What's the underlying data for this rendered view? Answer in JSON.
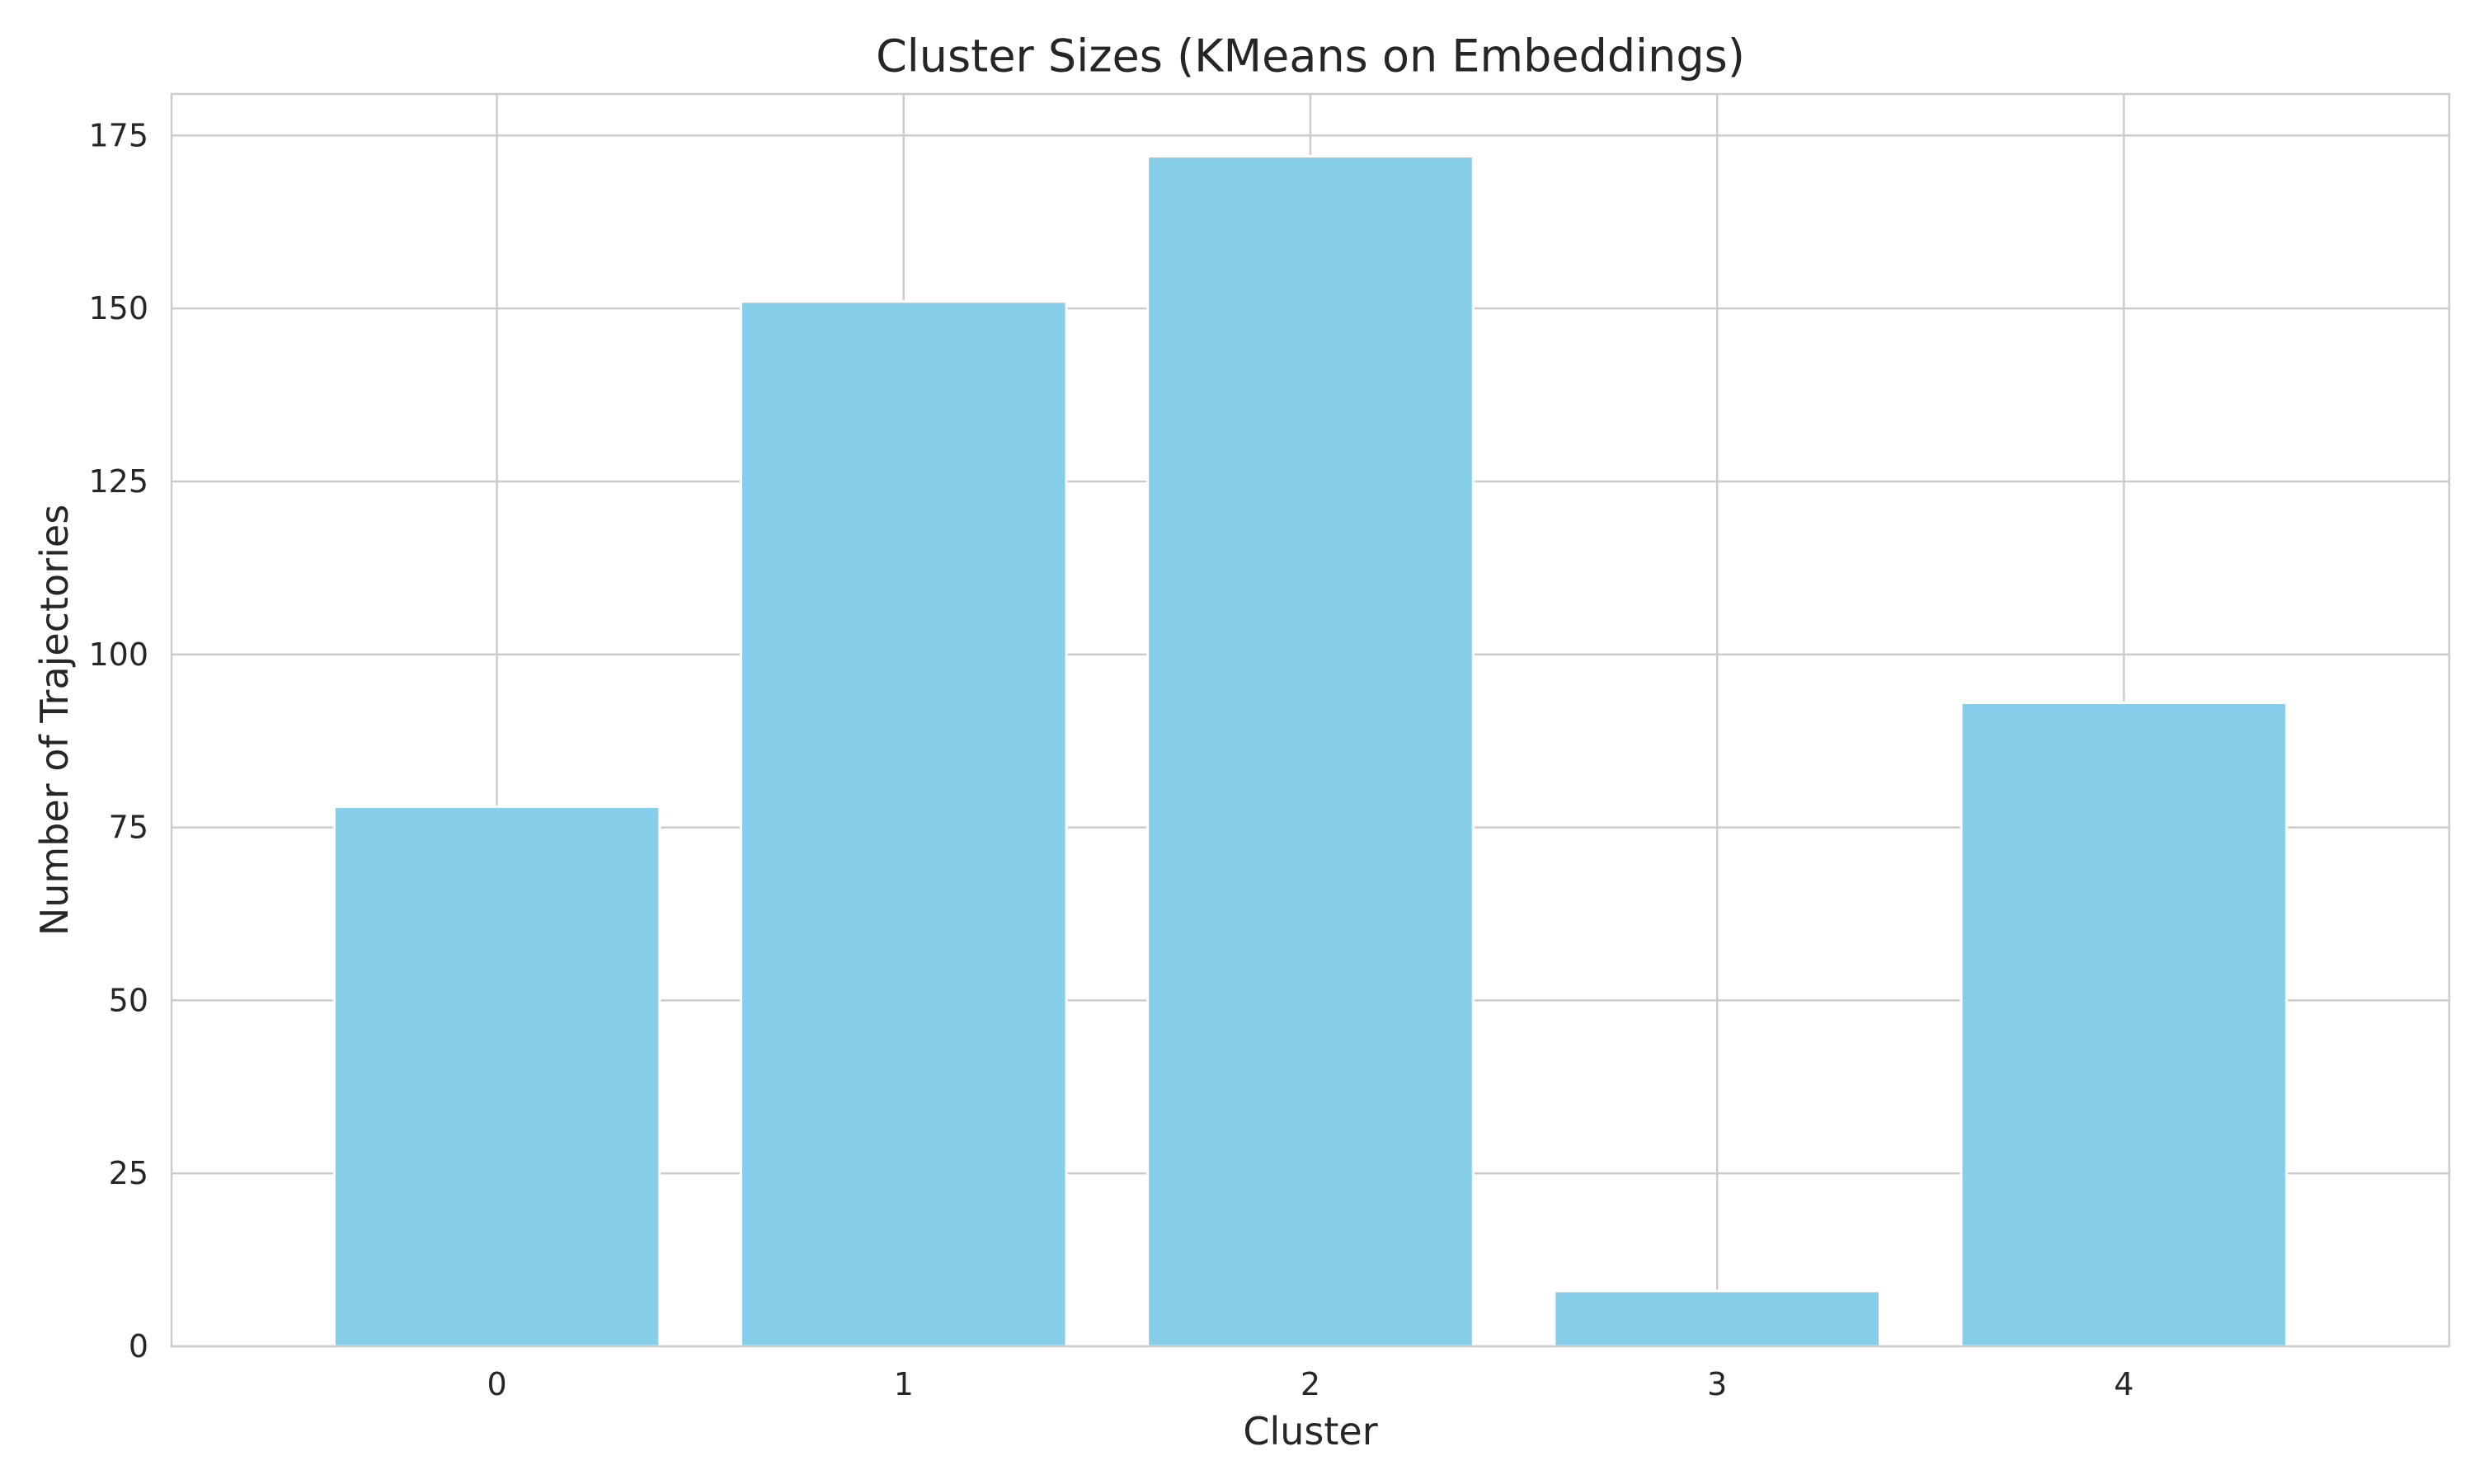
{
  "chart_data": {
    "type": "bar",
    "title": "Cluster Sizes (KMeans on Embeddings)",
    "xlabel": "Cluster",
    "ylabel": "Number of Trajectories",
    "categories": [
      "0",
      "1",
      "2",
      "3",
      "4"
    ],
    "values": [
      78,
      151,
      172,
      8,
      93
    ],
    "ylim": [
      0,
      181
    ],
    "yticks": [
      0,
      25,
      50,
      75,
      100,
      125,
      150,
      175
    ],
    "grid": true,
    "legend": "none",
    "colors": {
      "bar": "#87CEEB",
      "grid": "#cccccc",
      "frame": "#cccccc",
      "text": "#262626"
    }
  }
}
